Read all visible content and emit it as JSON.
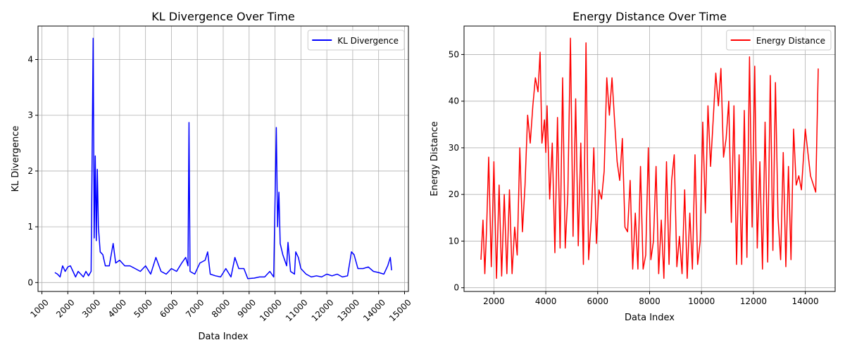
{
  "chart_data": [
    {
      "type": "line",
      "title": "KL Divergence Over Time",
      "xlabel": "Data Index",
      "ylabel": "KL Divergence",
      "x": [
        1500,
        1600,
        1700,
        1800,
        1900,
        2000,
        2100,
        2200,
        2300,
        2400,
        2500,
        2600,
        2700,
        2800,
        2900,
        2980,
        3020,
        3060,
        3100,
        3140,
        3180,
        3250,
        3350,
        3450,
        3600,
        3750,
        3850,
        4000,
        4200,
        4400,
        4600,
        4800,
        5000,
        5200,
        5400,
        5600,
        5800,
        6000,
        6200,
        6400,
        6550,
        6640,
        6680,
        6720,
        6900,
        7100,
        7300,
        7400,
        7500,
        7700,
        7900,
        8100,
        8300,
        8450,
        8600,
        8800,
        8950,
        9200,
        9400,
        9600,
        9800,
        9950,
        10050,
        10100,
        10150,
        10200,
        10300,
        10450,
        10500,
        10600,
        10750,
        10800,
        10900,
        11000,
        11200,
        11400,
        11600,
        11800,
        12000,
        12200,
        12400,
        12600,
        12800,
        12950,
        13050,
        13200,
        13400,
        13600,
        13800,
        14000,
        14200,
        14350,
        14450,
        14500
      ],
      "series": [
        {
          "name": "KL Divergence",
          "color": "#0000ff",
          "values": [
            0.18,
            0.15,
            0.1,
            0.3,
            0.2,
            0.28,
            0.3,
            0.2,
            0.1,
            0.2,
            0.15,
            0.1,
            0.2,
            0.12,
            0.2,
            4.38,
            0.8,
            2.27,
            0.75,
            2.03,
            1.0,
            0.55,
            0.5,
            0.3,
            0.3,
            0.7,
            0.35,
            0.4,
            0.3,
            0.3,
            0.25,
            0.2,
            0.3,
            0.15,
            0.45,
            0.2,
            0.15,
            0.25,
            0.2,
            0.35,
            0.45,
            0.3,
            2.87,
            0.2,
            0.15,
            0.35,
            0.4,
            0.55,
            0.15,
            0.12,
            0.1,
            0.25,
            0.1,
            0.45,
            0.25,
            0.25,
            0.07,
            0.08,
            0.1,
            0.1,
            0.2,
            0.1,
            2.78,
            1.0,
            1.62,
            0.7,
            0.5,
            0.3,
            0.72,
            0.2,
            0.15,
            0.55,
            0.45,
            0.25,
            0.15,
            0.1,
            0.12,
            0.1,
            0.15,
            0.12,
            0.15,
            0.1,
            0.12,
            0.55,
            0.5,
            0.25,
            0.25,
            0.28,
            0.2,
            0.18,
            0.15,
            0.3,
            0.45,
            0.22
          ]
        }
      ],
      "xlim": [
        850,
        15150
      ],
      "ylim": [
        -0.16,
        4.6
      ],
      "xticks": [
        1000,
        2000,
        3000,
        4000,
        5000,
        6000,
        7000,
        8000,
        9000,
        10000,
        11000,
        12000,
        13000,
        14000,
        15000
      ],
      "yticks": [
        0,
        1,
        2,
        3,
        4
      ],
      "x_tick_rotation": 45,
      "grid": true,
      "legend": "upper right"
    },
    {
      "type": "line",
      "title": "Energy Distance Over Time",
      "xlabel": "Data Index",
      "ylabel": "Energy Distance",
      "x": [
        1500,
        1580,
        1650,
        1720,
        1800,
        1900,
        2000,
        2100,
        2200,
        2300,
        2400,
        2500,
        2600,
        2700,
        2800,
        2900,
        3000,
        3100,
        3200,
        3300,
        3400,
        3500,
        3600,
        3700,
        3780,
        3850,
        3950,
        4000,
        4050,
        4150,
        4250,
        4350,
        4450,
        4550,
        4650,
        4750,
        4850,
        4950,
        5050,
        5150,
        5250,
        5350,
        5450,
        5550,
        5650,
        5750,
        5850,
        5950,
        6050,
        6150,
        6250,
        6350,
        6450,
        6550,
        6650,
        6750,
        6850,
        6950,
        7050,
        7150,
        7250,
        7350,
        7450,
        7550,
        7650,
        7750,
        7850,
        7950,
        8050,
        8150,
        8250,
        8350,
        8450,
        8550,
        8650,
        8750,
        8850,
        8950,
        9050,
        9150,
        9250,
        9350,
        9450,
        9550,
        9650,
        9750,
        9850,
        9950,
        10050,
        10150,
        10250,
        10350,
        10450,
        10550,
        10650,
        10750,
        10850,
        10950,
        11050,
        11150,
        11250,
        11350,
        11450,
        11550,
        11650,
        11750,
        11850,
        11950,
        12050,
        12150,
        12250,
        12350,
        12450,
        12550,
        12650,
        12750,
        12850,
        12950,
        13050,
        13150,
        13250,
        13350,
        13450,
        13550,
        13650,
        13750,
        13850,
        14000,
        14200,
        14400,
        14500
      ],
      "series": [
        {
          "name": "Energy Distance",
          "color": "#ff0000",
          "values": [
            6,
            14.5,
            3,
            13,
            28,
            4.5,
            27,
            2,
            22,
            2.5,
            20,
            3,
            21,
            3,
            13,
            7,
            30,
            12,
            22,
            37,
            31,
            39,
            45,
            42,
            50.5,
            31,
            36,
            29,
            39,
            19,
            31,
            7.5,
            36.5,
            8.5,
            45,
            8.5,
            20,
            53.5,
            11,
            40.5,
            9,
            31,
            5,
            52.5,
            6,
            14.5,
            30,
            9.5,
            21,
            19,
            25,
            45,
            37,
            45,
            36,
            27,
            23,
            32,
            13,
            12,
            23,
            4,
            16,
            4,
            26,
            4,
            7,
            30,
            6,
            10,
            26,
            3,
            14.5,
            2,
            27,
            5,
            23,
            28.5,
            4.5,
            11,
            3,
            21,
            2,
            16,
            4,
            28.5,
            5,
            10,
            35.5,
            16,
            39,
            26,
            36,
            46,
            39,
            47,
            28,
            32,
            40,
            14,
            39,
            5,
            28.5,
            5,
            38,
            6.5,
            49.5,
            13,
            47.5,
            8.5,
            27,
            4,
            35.5,
            5.5,
            45.5,
            8,
            44,
            15,
            6,
            29,
            4.5,
            26,
            6,
            34,
            22,
            24,
            21,
            34,
            24,
            20.5,
            47
          ]
        }
      ],
      "xlim": [
        850,
        15150
      ],
      "ylim": [
        -0.8,
        56.1
      ],
      "xticks": [
        2000,
        4000,
        6000,
        8000,
        10000,
        12000,
        14000
      ],
      "yticks": [
        0,
        10,
        20,
        30,
        40,
        50
      ],
      "grid": true,
      "legend": "upper right"
    }
  ]
}
